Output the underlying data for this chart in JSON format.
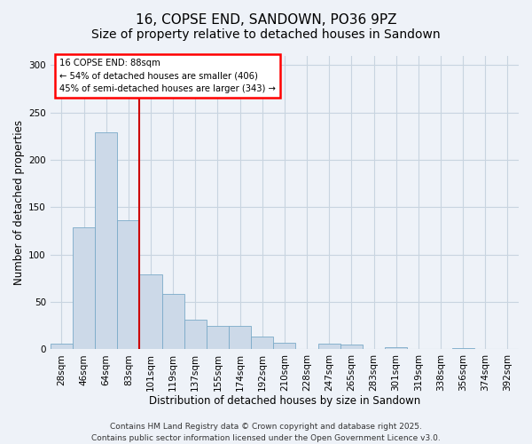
{
  "title": "16, COPSE END, SANDOWN, PO36 9PZ",
  "subtitle": "Size of property relative to detached houses in Sandown",
  "xlabel": "Distribution of detached houses by size in Sandown",
  "ylabel": "Number of detached properties",
  "bar_color": "#ccd9e8",
  "bar_edge_color": "#7aaac8",
  "bins": [
    "28sqm",
    "46sqm",
    "64sqm",
    "83sqm",
    "101sqm",
    "119sqm",
    "137sqm",
    "155sqm",
    "174sqm",
    "192sqm",
    "210sqm",
    "228sqm",
    "247sqm",
    "265sqm",
    "283sqm",
    "301sqm",
    "319sqm",
    "338sqm",
    "356sqm",
    "374sqm",
    "392sqm"
  ],
  "values": [
    6,
    129,
    229,
    136,
    79,
    58,
    31,
    25,
    25,
    13,
    7,
    0,
    6,
    5,
    0,
    2,
    0,
    0,
    1,
    0,
    0
  ],
  "vline_x_index": 3,
  "vline_color": "#cc0000",
  "annotation_line1": "16 COPSE END: 88sqm",
  "annotation_line2": "← 54% of detached houses are smaller (406)",
  "annotation_line3": "45% of semi-detached houses are larger (343) →",
  "ylim": [
    0,
    310
  ],
  "yticks": [
    0,
    50,
    100,
    150,
    200,
    250,
    300
  ],
  "footer1": "Contains HM Land Registry data © Crown copyright and database right 2025.",
  "footer2": "Contains public sector information licensed under the Open Government Licence v3.0.",
  "background_color": "#eef2f8",
  "grid_color": "#c8d4e0",
  "title_fontsize": 11,
  "axis_label_fontsize": 8.5,
  "tick_fontsize": 7.5,
  "footer_fontsize": 6.5
}
